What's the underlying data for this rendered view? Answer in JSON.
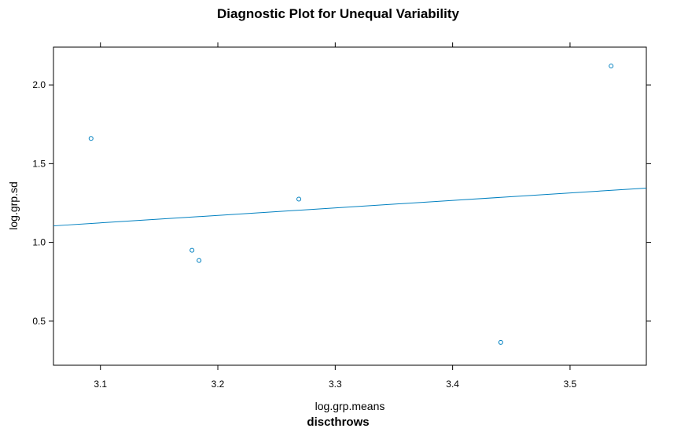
{
  "chart_data": {
    "type": "scatter",
    "title": "Diagnostic Plot for Unequal Variability",
    "xlabel": "log.grp.means",
    "ylabel": "log.grp.sd",
    "sublabel": "discthrows",
    "xlim": [
      3.06,
      3.565
    ],
    "ylim": [
      0.22,
      2.24
    ],
    "x_ticks": [
      3.1,
      3.2,
      3.3,
      3.4,
      3.5
    ],
    "x_tick_labels": [
      "3.1",
      "3.2",
      "3.3",
      "3.4",
      "3.5"
    ],
    "y_ticks": [
      0.5,
      1.0,
      1.5,
      2.0
    ],
    "y_tick_labels": [
      "0.5",
      "1.0",
      "1.5",
      "2.0"
    ],
    "grid": false,
    "series": [
      {
        "points": [
          {
            "x": 3.092,
            "y": 1.66
          },
          {
            "x": 3.178,
            "y": 0.95
          },
          {
            "x": 3.184,
            "y": 0.885
          },
          {
            "x": 3.269,
            "y": 1.275
          },
          {
            "x": 3.441,
            "y": 0.365
          },
          {
            "x": 3.535,
            "y": 2.12
          }
        ]
      }
    ],
    "fit_line": {
      "x": [
        3.06,
        3.565
      ],
      "y": [
        1.105,
        1.345
      ]
    },
    "colors": {
      "points": "#0080c0",
      "line": "#0080c0",
      "axes": "#000000"
    }
  }
}
